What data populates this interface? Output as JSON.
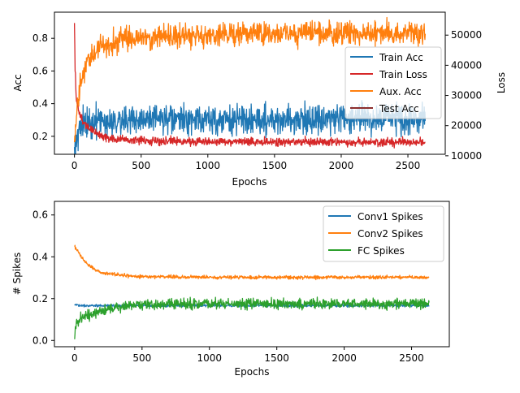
{
  "chart_data": [
    {
      "type": "line",
      "xlabel": "Epochs",
      "ylabel": "Acc",
      "ylabel_right": "Loss",
      "xlim": [
        -150,
        2780
      ],
      "ylim": [
        0.09,
        0.96
      ],
      "ylim_right": [
        10500,
        57600
      ],
      "xticks": [
        0,
        500,
        1000,
        1500,
        2000,
        2500
      ],
      "yticks": [
        0.2,
        0.4,
        0.6,
        0.8
      ],
      "yticks_right": [
        10000,
        20000,
        30000,
        40000,
        50000
      ],
      "legend_position": "center-right",
      "series": [
        {
          "name": "Train Acc",
          "color": "#1f77b4",
          "axis": "left",
          "x": [
            0,
            30,
            60,
            100,
            200,
            300,
            500,
            800,
            1000,
            1500,
            1900,
            2000,
            2300,
            2630
          ],
          "values": [
            0.15,
            0.23,
            0.27,
            0.28,
            0.29,
            0.3,
            0.3,
            0.3,
            0.3,
            0.3,
            0.31,
            0.31,
            0.31,
            0.3
          ],
          "noise": 0.045
        },
        {
          "name": "Train Loss",
          "color": "#d62728",
          "axis": "right",
          "x": [
            0,
            5,
            15,
            30,
            60,
            100,
            150,
            200,
            300,
            500,
            1000,
            1500,
            2000,
            2630
          ],
          "values": [
            54000,
            38000,
            29000,
            25000,
            21500,
            19500,
            18000,
            16500,
            15500,
            15000,
            14700,
            14600,
            14500,
            14500
          ],
          "noise": 700
        },
        {
          "name": "Aux. Acc",
          "color": "#ff7f0e",
          "axis": "left",
          "x": [
            0,
            20,
            50,
            100,
            150,
            200,
            300,
            400,
            600,
            1000,
            1500,
            2000,
            2630
          ],
          "values": [
            0.15,
            0.36,
            0.55,
            0.64,
            0.71,
            0.75,
            0.78,
            0.8,
            0.81,
            0.82,
            0.83,
            0.83,
            0.83
          ],
          "noise": 0.035
        },
        {
          "name": "Test Acc",
          "color": "#8c2d2d",
          "axis": "left",
          "x": [],
          "values": [],
          "noise": 0
        }
      ]
    },
    {
      "type": "line",
      "xlabel": "Epochs",
      "ylabel": "# Spikes",
      "xlim": [
        -150,
        2780
      ],
      "ylim": [
        -0.03,
        0.665
      ],
      "xticks": [
        0,
        500,
        1000,
        1500,
        2000,
        2500
      ],
      "yticks": [
        0.0,
        0.2,
        0.4,
        0.6
      ],
      "legend_position": "top-right",
      "series": [
        {
          "name": "Conv1 Spikes",
          "color": "#1f77b4",
          "x": [
            0,
            30,
            100,
            300,
            500,
            1000,
            1500,
            2000,
            2630
          ],
          "values": [
            0.17,
            0.168,
            0.167,
            0.167,
            0.167,
            0.167,
            0.167,
            0.167,
            0.167
          ],
          "noise": 0.003
        },
        {
          "name": "Conv2 Spikes",
          "color": "#ff7f0e",
          "x": [
            0,
            20,
            50,
            100,
            150,
            200,
            300,
            500,
            1000,
            1500,
            2000,
            2630
          ],
          "values": [
            0.45,
            0.43,
            0.4,
            0.36,
            0.34,
            0.325,
            0.315,
            0.305,
            0.303,
            0.302,
            0.302,
            0.302
          ],
          "noise": 0.004
        },
        {
          "name": "FC Spikes",
          "color": "#2ca02c",
          "x": [
            0,
            10,
            30,
            60,
            100,
            200,
            300,
            500,
            800,
            1000,
            1500,
            2000,
            2630
          ],
          "values": [
            0.03,
            0.08,
            0.1,
            0.11,
            0.12,
            0.14,
            0.155,
            0.17,
            0.175,
            0.175,
            0.175,
            0.175,
            0.175
          ],
          "noise": 0.012
        }
      ]
    }
  ]
}
